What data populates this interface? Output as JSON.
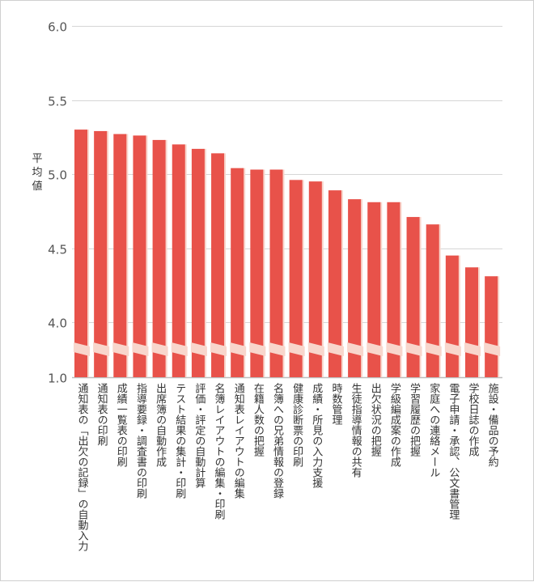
{
  "chart_data": {
    "type": "bar",
    "title": "",
    "xlabel": "",
    "ylabel": "平均値",
    "ylim": [
      1.0,
      6.0
    ],
    "axis_break": {
      "from": 1.0,
      "to": 3.8
    },
    "yticks": [
      {
        "value": 6.0,
        "label": "6.0"
      },
      {
        "value": 5.5,
        "label": "5.5"
      },
      {
        "value": 5.0,
        "label": "5.0"
      },
      {
        "value": 4.5,
        "label": "4.5"
      },
      {
        "value": 4.0,
        "label": "4.0"
      },
      {
        "value": 1.0,
        "label": "1.0"
      }
    ],
    "grid": true,
    "bar_color": "#e8524a",
    "shadow_color": "#f8d6cc",
    "categories": [
      "通知表の「出欠の記録」の自動入力",
      "通知表の印刷",
      "成績一覧表の印刷",
      "指導要録・調査書の印刷",
      "出席簿の自動作成",
      "テスト結果の集計・印刷",
      "評価・評定の自動計算",
      "名簿レイアウトの編集・印刷",
      "通知表レイアウトの編集",
      "在籍人数の把握",
      "名簿への兄弟情報の登録",
      "健康診断票の印刷",
      "成績・所見の入力支援",
      "時数管理",
      "生徒指導情報の共有",
      "出欠状況の把握",
      "学級編成案の作成",
      "学習履歴の把握",
      "家庭への連絡メール",
      "電子申請・承認、公文書管理",
      "学校日誌の作成",
      "施設・備品の予約"
    ],
    "values": [
      5.3,
      5.29,
      5.27,
      5.26,
      5.23,
      5.2,
      5.17,
      5.14,
      5.04,
      5.03,
      5.03,
      4.96,
      4.95,
      4.89,
      4.83,
      4.81,
      4.81,
      4.71,
      4.66,
      4.45,
      4.37,
      4.31
    ]
  }
}
